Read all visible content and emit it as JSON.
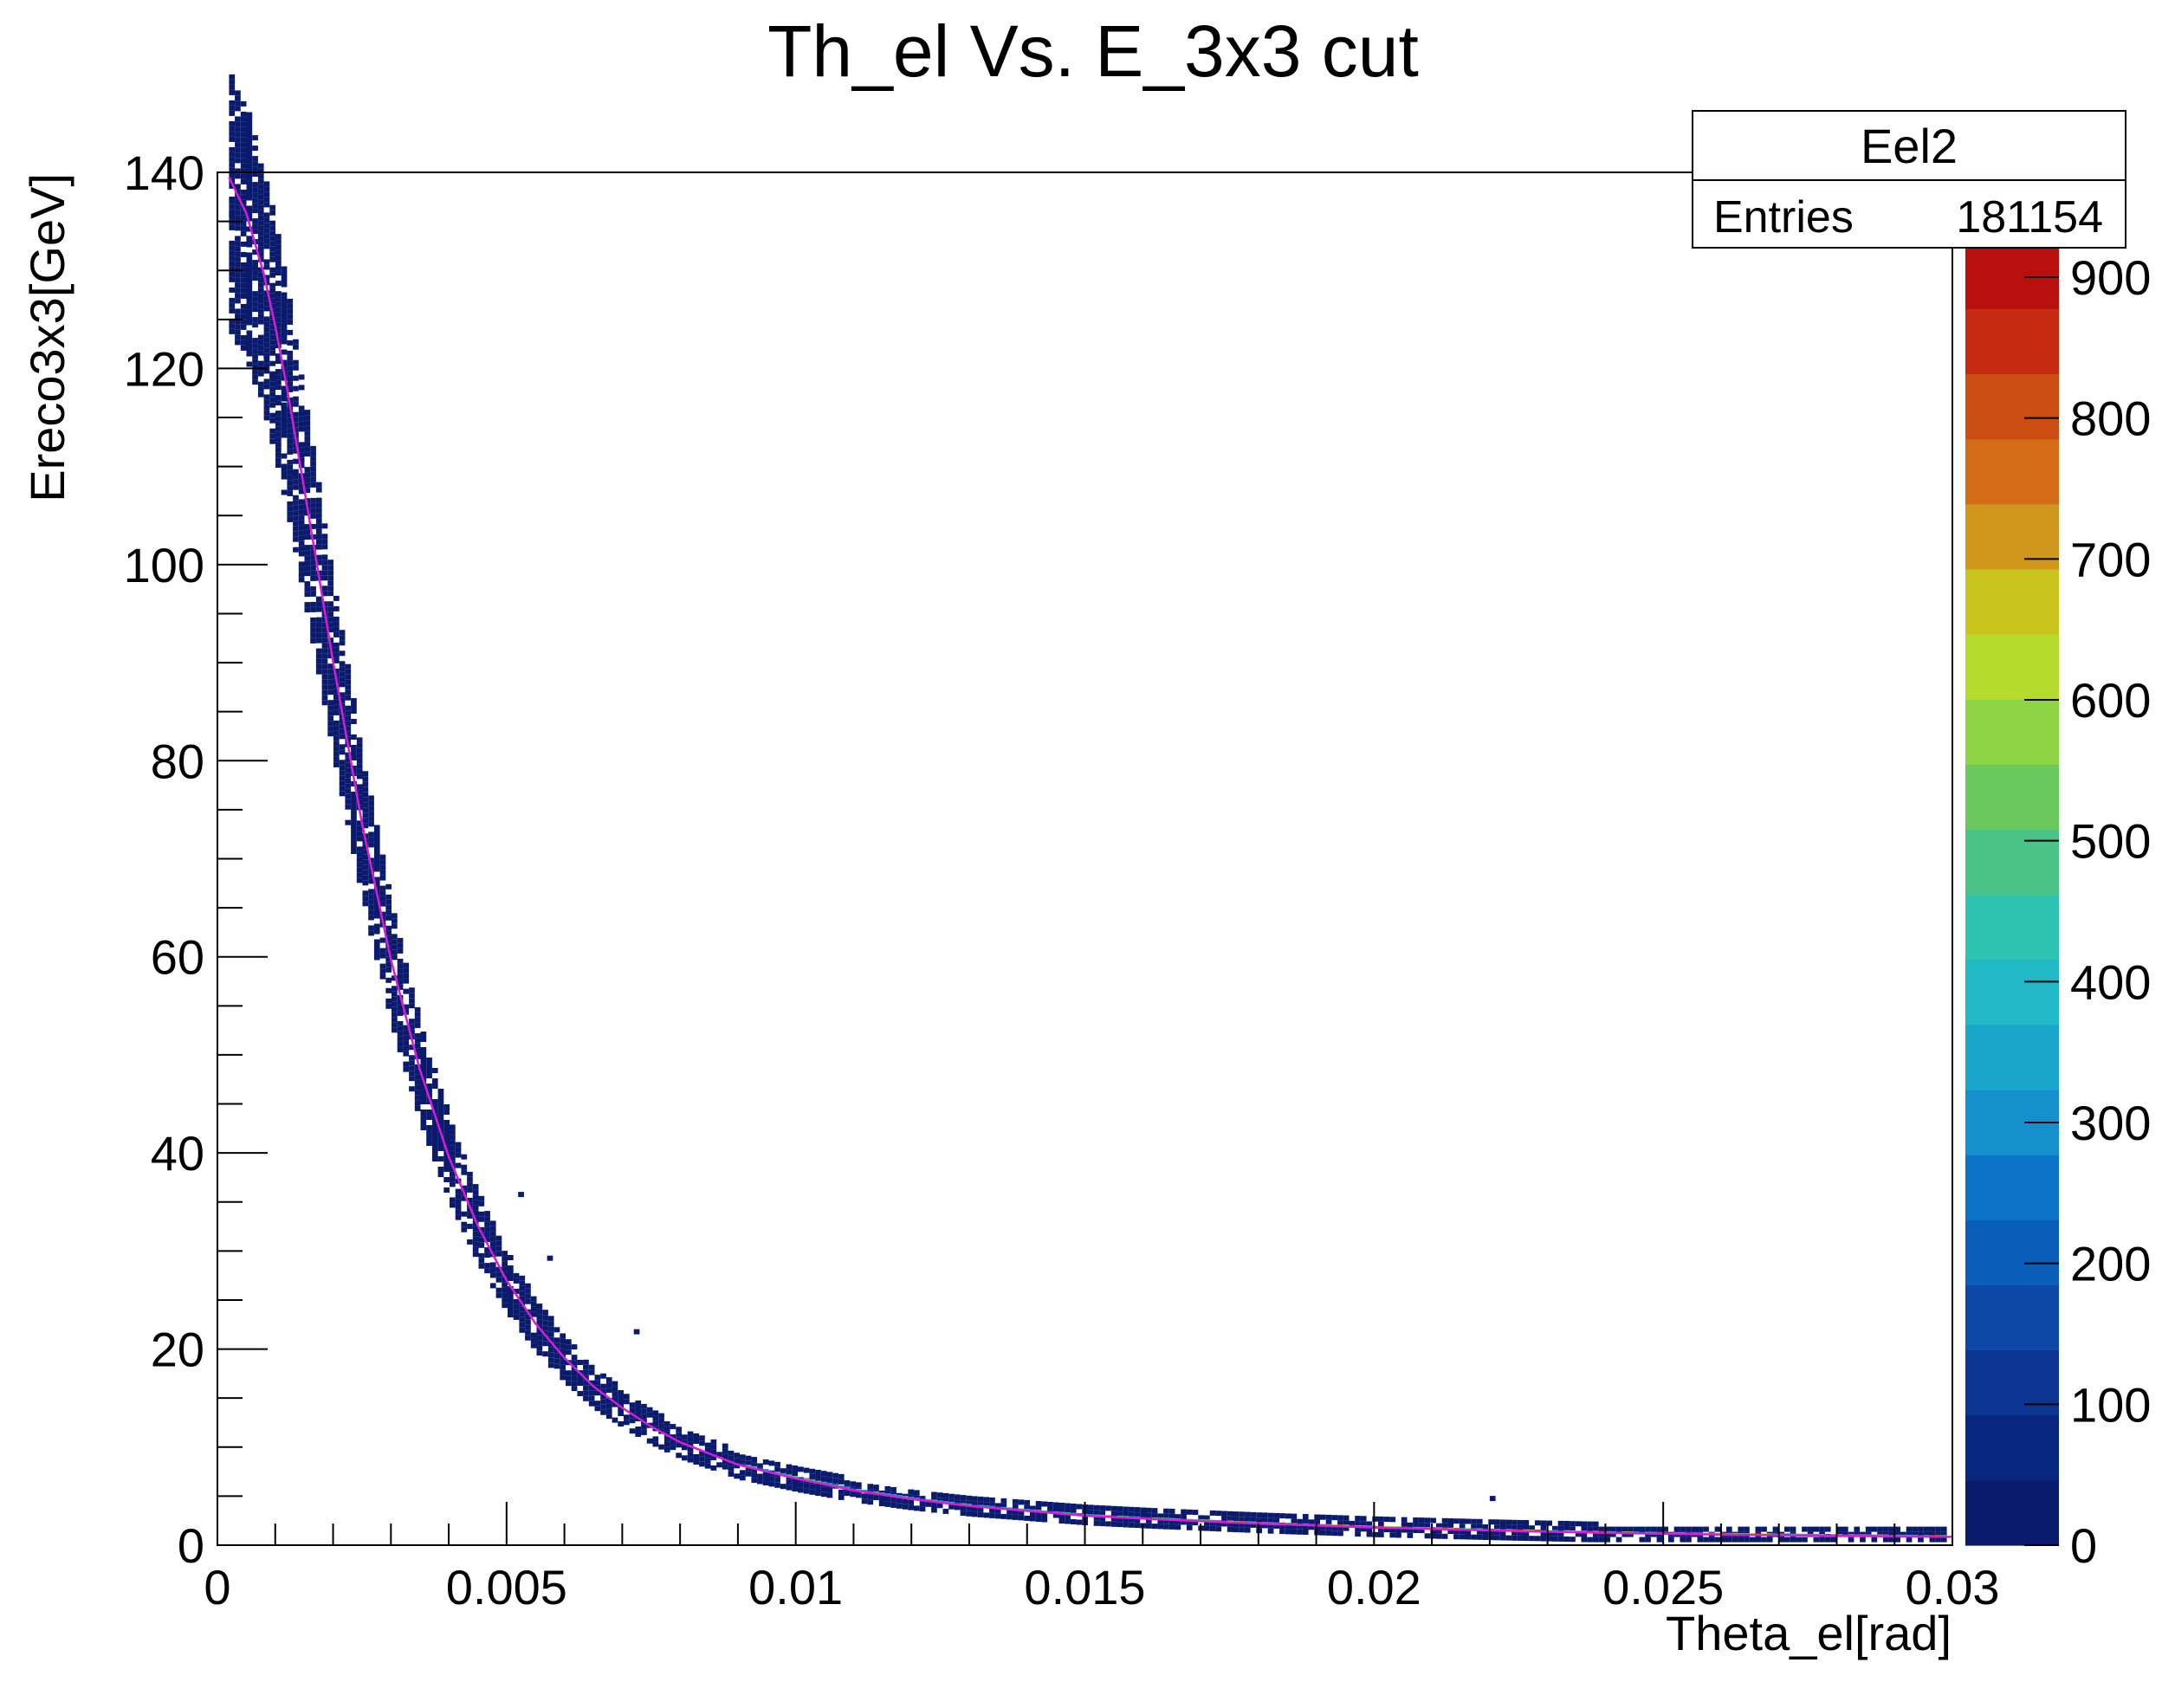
{
  "chart_data": {
    "type": "heatmap",
    "title": "Th_el Vs. E_3x3 cut",
    "xlabel": "Theta_el[rad]",
    "ylabel": "Ereco3x3[GeV]",
    "xlim": [
      0,
      0.03
    ],
    "ylim": [
      0,
      140
    ],
    "x_ticks": [
      "0",
      "0.005",
      "0.01",
      "0.015",
      "0.02",
      "0.025",
      "0.03"
    ],
    "y_ticks": [
      "0",
      "20",
      "40",
      "60",
      "80",
      "100",
      "120",
      "140"
    ],
    "stats_box": {
      "name": "Eel2",
      "entries_label": "Entries",
      "entries_value": "181154"
    },
    "colorbar": {
      "range": [
        0,
        1000
      ],
      "ticks": [
        "0",
        "100",
        "200",
        "300",
        "400",
        "500",
        "600",
        "700",
        "800",
        "900"
      ],
      "colors": [
        "#0a1b6e",
        "#08267f",
        "#0b3590",
        "#0e48a6",
        "#0a5db8",
        "#0c74c8",
        "#1590cc",
        "#1aa6cc",
        "#22b9c6",
        "#2ec2b0",
        "#4cc386",
        "#6ac95c",
        "#8fd444",
        "#b5dc2c",
        "#cac51c",
        "#d0971c",
        "#d26c16",
        "#cc4d12",
        "#c62a10",
        "#b9100e",
        "#920606"
      ]
    },
    "curve": {
      "color": "#d81bd8",
      "x": [
        0.0002,
        0.0005,
        0.0008,
        0.001,
        0.0012,
        0.0015,
        0.0018,
        0.002,
        0.0025,
        0.003,
        0.0035,
        0.004,
        0.0045,
        0.005,
        0.0055,
        0.006,
        0.0065,
        0.007,
        0.0075,
        0.008,
        0.009,
        0.01,
        0.011,
        0.012,
        0.013,
        0.014,
        0.015,
        0.016,
        0.018,
        0.02,
        0.022,
        0.024,
        0.026,
        0.028,
        0.03
      ],
      "y": [
        139.5,
        135.8,
        129.7,
        124.3,
        118.1,
        107.8,
        97.2,
        90.1,
        73.6,
        59.7,
        48.5,
        39.6,
        32.6,
        27.0,
        22.6,
        19.1,
        16.2,
        14.0,
        12.1,
        10.5,
        8.2,
        6.8,
        5.6,
        4.7,
        4.0,
        3.5,
        3.0,
        2.7,
        2.2,
        1.8,
        1.5,
        1.25,
        1.08,
        0.95,
        0.85
      ]
    }
  }
}
